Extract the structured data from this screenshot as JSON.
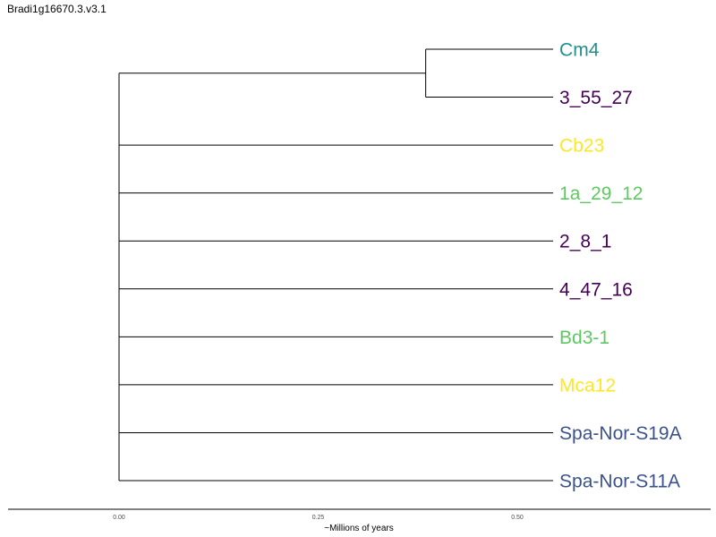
{
  "title": "Bradi1g16670.3.v3.1",
  "chart_data": {
    "type": "tree",
    "xlabel": "~Millions of years",
    "ticks": [
      0.0,
      0.25,
      0.5
    ],
    "tick_labels": [
      "0.00",
      "0.25",
      "0.50"
    ],
    "xlim": [
      -0.14,
      0.74
    ],
    "root_x": 0.0,
    "tip_x": 0.545,
    "internal_nodes": [
      {
        "x": 0.385,
        "children": [
          "Cm4",
          "3_55_27"
        ]
      }
    ],
    "leaves": [
      {
        "label": "Cm4",
        "color": "#21918c"
      },
      {
        "label": "3_55_27",
        "color": "#440154"
      },
      {
        "label": "Cb23",
        "color": "#fde725"
      },
      {
        "label": "1a_29_12",
        "color": "#5ec962"
      },
      {
        "label": "2_8_1",
        "color": "#440154"
      },
      {
        "label": "4_47_16",
        "color": "#440154"
      },
      {
        "label": "Bd3-1",
        "color": "#5ec962"
      },
      {
        "label": "Mca12",
        "color": "#fde725"
      },
      {
        "label": "Spa-Nor-S19A",
        "color": "#3b528b"
      },
      {
        "label": "Spa-Nor-S11A",
        "color": "#3b528b"
      }
    ]
  }
}
